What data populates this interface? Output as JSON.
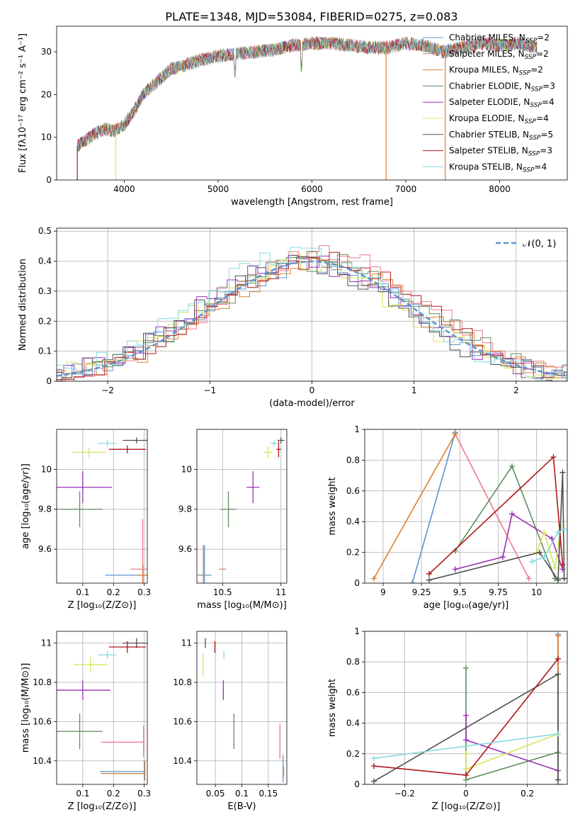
{
  "figure_title": "PLATE=1348, MJD=53084, FIBERID=0275, z=0.083",
  "legend": [
    {
      "label": "Chabrier MILES, N",
      "sub": "SSP",
      "tail": "=2",
      "color": "#5f93d0"
    },
    {
      "label": "Salpeter MILES, N",
      "sub": "SSP",
      "tail": "=2",
      "color": "#ee7b8e"
    },
    {
      "label": "Kroupa MILES, N",
      "sub": "SSP",
      "tail": "=2",
      "color": "#d98030"
    },
    {
      "label": "Chabrier ELODIE, N",
      "sub": "SSP",
      "tail": "=3",
      "color": "#5e8e5e"
    },
    {
      "label": "Salpeter ELODIE, N",
      "sub": "SSP",
      "tail": "=4",
      "color": "#9a2fb8"
    },
    {
      "label": "Kroupa ELODIE, N",
      "sub": "SSP",
      "tail": "=4",
      "color": "#d6e65a"
    },
    {
      "label": "Chabrier STELIB, N",
      "sub": "SSP",
      "tail": "=5",
      "color": "#505050"
    },
    {
      "label": "Salpeter STELIB, N",
      "sub": "SSP",
      "tail": "=3",
      "color": "#b01818"
    },
    {
      "label": "Kroupa STELIB, N",
      "sub": "SSP",
      "tail": "=4",
      "color": "#86dae0"
    }
  ],
  "normal_label": "𝒩(0, 1)",
  "chart_data": [
    {
      "id": "spectrum",
      "type": "line",
      "xlabel": "wavelength [Angstrom, rest frame]",
      "ylabel": "Flux [fλ10⁻¹⁷ erg cm⁻² s⁻¹ A⁻¹]",
      "xlim": [
        3280,
        8720
      ],
      "ylim": [
        0,
        36
      ],
      "xticks": [
        4000,
        5000,
        6000,
        7000,
        8000
      ],
      "yticks": [
        0,
        10,
        20,
        30
      ],
      "spectrum": [
        [
          3500,
          8
        ],
        [
          3600,
          9.5
        ],
        [
          3700,
          11
        ],
        [
          3800,
          12
        ],
        [
          3900,
          11.5
        ],
        [
          4000,
          13
        ],
        [
          4100,
          16
        ],
        [
          4200,
          20
        ],
        [
          4300,
          22
        ],
        [
          4400,
          24
        ],
        [
          4500,
          26
        ],
        [
          4600,
          26.5
        ],
        [
          4800,
          28
        ],
        [
          5000,
          29
        ],
        [
          5200,
          29.5
        ],
        [
          5400,
          30
        ],
        [
          5600,
          30.5
        ],
        [
          5800,
          31.5
        ],
        [
          6000,
          32
        ],
        [
          6200,
          32
        ],
        [
          6400,
          31.5
        ],
        [
          6600,
          31
        ],
        [
          6800,
          31
        ],
        [
          7000,
          32
        ],
        [
          7200,
          31.5
        ],
        [
          7400,
          30
        ],
        [
          7600,
          31
        ],
        [
          7800,
          32
        ],
        [
          8000,
          31.5
        ],
        [
          8200,
          32
        ],
        [
          8400,
          31
        ]
      ]
    },
    {
      "id": "residuals",
      "type": "step",
      "xlabel": "(data-model)/error",
      "ylabel": "Normed distribution",
      "xlim": [
        -2.5,
        2.5
      ],
      "ylim": [
        0,
        0.51
      ],
      "xticks": [
        -2,
        -1,
        0,
        1,
        2
      ],
      "yticks": [
        0,
        0.1,
        0.2,
        0.3,
        0.4,
        0.5
      ],
      "normal": {
        "mu": 0,
        "sigma": 1
      }
    },
    {
      "id": "age_vs_Z",
      "type": "errorbar",
      "xlabel": "Z [log₁₀(Z/Z⊙)]",
      "ylabel": "age  [log₁₀(age/yr)]",
      "xlim": [
        0.015,
        0.31
      ],
      "ylim": [
        9.43,
        10.2
      ],
      "xticks": [
        0.1,
        0.2,
        0.3
      ],
      "yticks": [
        9.6,
        9.8,
        10.0
      ],
      "points": [
        {
          "x": 0.293,
          "y": 9.47,
          "xe": 0.12,
          "ye": 0.0,
          "c": "#5f93d0"
        },
        {
          "x": 0.295,
          "y": 9.5,
          "xe": 0.04,
          "ye": 0.25,
          "c": "#ee7b8e"
        },
        {
          "x": 0.296,
          "y": 9.47,
          "xe": 0.02,
          "ye": 0.05,
          "c": "#d98030"
        },
        {
          "x": 0.09,
          "y": 9.8,
          "xe": 0.075,
          "ye": 0.09,
          "c": "#5e8e5e"
        },
        {
          "x": 0.1,
          "y": 9.91,
          "xe": 0.095,
          "ye": 0.08,
          "c": "#9a2fb8"
        },
        {
          "x": 0.12,
          "y": 10.085,
          "xe": 0.055,
          "ye": 0.025,
          "c": "#d6e65a"
        },
        {
          "x": 0.275,
          "y": 10.145,
          "xe": 0.045,
          "ye": 0.015,
          "c": "#505050"
        },
        {
          "x": 0.245,
          "y": 10.1,
          "xe": 0.06,
          "ye": 0.02,
          "c": "#b01818"
        },
        {
          "x": 0.18,
          "y": 10.13,
          "xe": 0.03,
          "ye": 0.015,
          "c": "#86dae0"
        }
      ]
    },
    {
      "id": "age_vs_mass",
      "type": "errorbar",
      "xlabel": "mass [log₁₀(M/M⊙)]",
      "ylabel": "",
      "xlim": [
        10.28,
        11.05
      ],
      "ylim": [
        9.43,
        10.2
      ],
      "xticks": [
        10.5,
        11.0
      ],
      "yticks": [
        9.6,
        9.8,
        10.0
      ],
      "points": [
        {
          "x": 10.345,
          "y": 9.47,
          "xe": 0.06,
          "ye": 0.15,
          "c": "#5f93d0"
        },
        {
          "x": 10.5,
          "y": 9.5,
          "xe": 0.03,
          "ye": 0.0,
          "c": "#ee7b8e"
        },
        {
          "x": 10.335,
          "y": 9.47,
          "xe": 0.01,
          "ye": 0.15,
          "c": "#d98030"
        },
        {
          "x": 10.55,
          "y": 9.8,
          "xe": 0.07,
          "ye": 0.09,
          "c": "#5e8e5e"
        },
        {
          "x": 10.76,
          "y": 9.91,
          "xe": 0.055,
          "ye": 0.08,
          "c": "#9a2fb8"
        },
        {
          "x": 10.89,
          "y": 10.085,
          "xe": 0.04,
          "ye": 0.03,
          "c": "#d6e65a"
        },
        {
          "x": 11.0,
          "y": 10.145,
          "xe": 0.03,
          "ye": 0.015,
          "c": "#505050"
        },
        {
          "x": 10.98,
          "y": 10.1,
          "xe": 0.02,
          "ye": 0.04,
          "c": "#b01818"
        },
        {
          "x": 10.94,
          "y": 10.13,
          "xe": 0.03,
          "ye": 0.015,
          "c": "#86dae0"
        }
      ]
    },
    {
      "id": "weight_vs_age",
      "type": "line",
      "xlabel": "age  [log₁₀(age/yr)]",
      "ylabel": "mass weight",
      "xlim": [
        8.88,
        10.2
      ],
      "ylim": [
        0,
        1.0
      ],
      "xticks": [
        9.0,
        9.25,
        9.5,
        9.75,
        10.0
      ],
      "yticks": [
        0,
        0.2,
        0.4,
        0.6,
        0.8,
        1.0
      ],
      "series": [
        {
          "c": "#5f93d0",
          "pts": [
            [
              9.19,
              0.0
            ],
            [
              9.47,
              0.98
            ],
            [
              9.47,
              0.98
            ]
          ]
        },
        {
          "c": "#ee7b8e",
          "pts": [
            [
              9.47,
              0.97
            ],
            [
              9.95,
              0.03
            ]
          ]
        },
        {
          "c": "#d98030",
          "pts": [
            [
              8.94,
              0.03
            ],
            [
              9.47,
              0.97
            ]
          ]
        },
        {
          "c": "#5e8e5e",
          "pts": [
            [
              9.47,
              0.21
            ],
            [
              9.84,
              0.76
            ],
            [
              10.12,
              0.03
            ],
            [
              10.18,
              0.03
            ]
          ]
        },
        {
          "c": "#9a2fb8",
          "pts": [
            [
              9.47,
              0.09
            ],
            [
              9.78,
              0.17
            ],
            [
              9.84,
              0.45
            ],
            [
              10.1,
              0.29
            ],
            [
              10.17,
              0.09
            ]
          ]
        },
        {
          "c": "#d6e65a",
          "pts": [
            [
              10.0,
              0.2
            ],
            [
              10.05,
              0.33
            ],
            [
              10.12,
              0.1
            ],
            [
              10.16,
              0.37
            ]
          ]
        },
        {
          "c": "#505050",
          "pts": [
            [
              9.3,
              0.02
            ],
            [
              10.02,
              0.2
            ],
            [
              10.14,
              0.02
            ],
            [
              10.17,
              0.72
            ],
            [
              10.18,
              0.03
            ]
          ]
        },
        {
          "c": "#b01818",
          "pts": [
            [
              9.3,
              0.06
            ],
            [
              10.11,
              0.82
            ],
            [
              10.17,
              0.12
            ]
          ]
        },
        {
          "c": "#86dae0",
          "pts": [
            [
              9.97,
              0.14
            ],
            [
              10.05,
              0.17
            ],
            [
              10.14,
              0.33
            ],
            [
              10.18,
              0.35
            ]
          ]
        }
      ]
    },
    {
      "id": "mass_vs_Z",
      "type": "errorbar",
      "xlabel": "Z [log₁₀(Z/Z⊙)]",
      "ylabel": "mass [log₁₀(M/M⊙)]",
      "xlim": [
        0.015,
        0.31
      ],
      "ylim": [
        10.28,
        11.06
      ],
      "xticks": [
        0.1,
        0.2,
        0.3
      ],
      "yticks": [
        10.4,
        10.6,
        10.8,
        11.0
      ],
      "points": [
        {
          "x": 0.23,
          "y": 10.345,
          "xe": 0.075,
          "ye": 0.0,
          "c": "#5f93d0"
        },
        {
          "x": 0.3,
          "y": 10.35,
          "xe": 0.0,
          "ye": 0.05,
          "c": "#5f93d0"
        },
        {
          "x": 0.23,
          "y": 10.495,
          "xe": 0.07,
          "ye": 0.0,
          "c": "#ee7b8e"
        },
        {
          "x": 0.298,
          "y": 10.5,
          "xe": 0.0,
          "ye": 0.08,
          "c": "#ee7b8e"
        },
        {
          "x": 0.23,
          "y": 10.335,
          "xe": 0.07,
          "ye": 0.0,
          "c": "#d98030"
        },
        {
          "x": 0.302,
          "y": 10.35,
          "xe": 0.0,
          "ye": 0.05,
          "c": "#d98030"
        },
        {
          "x": 0.09,
          "y": 10.55,
          "xe": 0.075,
          "ye": 0.09,
          "c": "#5e8e5e"
        },
        {
          "x": 0.1,
          "y": 10.76,
          "xe": 0.09,
          "ye": 0.05,
          "c": "#9a2fb8"
        },
        {
          "x": 0.125,
          "y": 10.89,
          "xe": 0.055,
          "ye": 0.04,
          "c": "#d6e65a"
        },
        {
          "x": 0.275,
          "y": 11.0,
          "xe": 0.045,
          "ye": 0.025,
          "c": "#505050"
        },
        {
          "x": 0.245,
          "y": 10.98,
          "xe": 0.06,
          "ye": 0.03,
          "c": "#b01818"
        },
        {
          "x": 0.18,
          "y": 10.94,
          "xe": 0.03,
          "ye": 0.02,
          "c": "#86dae0"
        }
      ]
    },
    {
      "id": "mass_vs_ebv",
      "type": "errorbar",
      "xlabel": "E(B-V)",
      "ylabel": "",
      "xlim": [
        0.015,
        0.185
      ],
      "ylim": [
        10.28,
        11.06
      ],
      "xticks": [
        0.05,
        0.1,
        0.15
      ],
      "yticks": [
        10.4,
        10.6,
        10.8,
        11.0
      ],
      "points": [
        {
          "x": 0.178,
          "y": 10.36,
          "xe": 0,
          "ye": 0.07,
          "c": "#5f93d0"
        },
        {
          "x": 0.172,
          "y": 10.5,
          "xe": 0,
          "ye": 0.09,
          "c": "#ee7b8e"
        },
        {
          "x": 0.179,
          "y": 10.345,
          "xe": 0,
          "ye": 0.025,
          "c": "#d98030"
        },
        {
          "x": 0.085,
          "y": 10.55,
          "xe": 0,
          "ye": 0.09,
          "c": "#5e8e5e"
        },
        {
          "x": 0.065,
          "y": 10.76,
          "xe": 0,
          "ye": 0.05,
          "c": "#9a2fb8"
        },
        {
          "x": 0.027,
          "y": 10.89,
          "xe": 0,
          "ye": 0.06,
          "c": "#d6e65a"
        },
        {
          "x": 0.031,
          "y": 11.0,
          "xe": 0,
          "ye": 0.025,
          "c": "#505050"
        },
        {
          "x": 0.049,
          "y": 10.98,
          "xe": 0,
          "ye": 0.03,
          "c": "#b01818"
        },
        {
          "x": 0.066,
          "y": 10.94,
          "xe": 0,
          "ye": 0.02,
          "c": "#86dae0"
        }
      ]
    },
    {
      "id": "weight_vs_Z",
      "type": "line",
      "xlabel": "Z [log₁₀(Z/Z⊙)]",
      "ylabel": "mass weight",
      "xlim": [
        -0.33,
        0.33
      ],
      "ylim": [
        0,
        1.0
      ],
      "xticks": [
        -0.2,
        0.0,
        0.2
      ],
      "yticks": [
        0,
        0.2,
        0.4,
        0.6,
        0.8,
        1.0
      ],
      "series": [
        {
          "c": "#5f93d0",
          "pts": [
            [
              0.3,
              0.0
            ],
            [
              0.3,
              0.98
            ]
          ]
        },
        {
          "c": "#ee7b8e",
          "pts": [
            [
              0.3,
              0.03
            ],
            [
              0.3,
              0.97
            ]
          ]
        },
        {
          "c": "#d98030",
          "pts": [
            [
              0.3,
              0.03
            ],
            [
              0.3,
              0.97
            ]
          ]
        },
        {
          "c": "#5e8e5e",
          "pts": [
            [
              0.0,
              0.76
            ],
            [
              0.0,
              0.03
            ],
            [
              0.3,
              0.21
            ]
          ]
        },
        {
          "c": "#9a2fb8",
          "pts": [
            [
              0.0,
              0.45
            ],
            [
              0.0,
              0.29
            ],
            [
              0.3,
              0.09
            ]
          ]
        },
        {
          "c": "#d6e65a",
          "pts": [
            [
              0.0,
              0.2
            ],
            [
              0.0,
              0.1
            ],
            [
              0.3,
              0.33
            ]
          ]
        },
        {
          "c": "#505050",
          "pts": [
            [
              -0.3,
              0.02
            ],
            [
              0.3,
              0.72
            ],
            [
              0.3,
              0.03
            ]
          ]
        },
        {
          "c": "#b01818",
          "pts": [
            [
              -0.3,
              0.12
            ],
            [
              0.0,
              0.06
            ],
            [
              0.3,
              0.82
            ]
          ]
        },
        {
          "c": "#86dae0",
          "pts": [
            [
              -0.3,
              0.17
            ],
            [
              0.3,
              0.33
            ]
          ]
        }
      ]
    }
  ]
}
